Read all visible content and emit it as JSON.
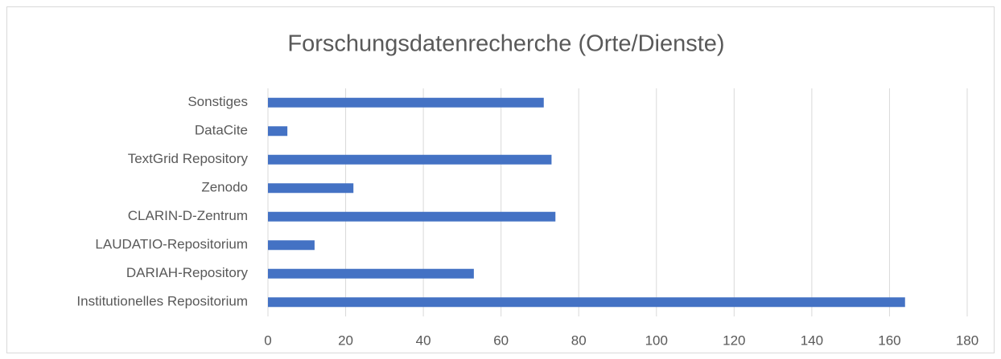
{
  "chart_data": {
    "type": "bar",
    "orientation": "horizontal",
    "title": "Forschungsdatenrecherche (Orte/Dienste)",
    "categories": [
      "Institutionelles Repositorium",
      "DARIAH-Repository",
      "LAUDATIO-Repositorium",
      "CLARIN-D-Zentrum",
      "Zenodo",
      "TextGrid Repository",
      "DataCite",
      "Sonstiges"
    ],
    "values": [
      164,
      53,
      12,
      74,
      22,
      73,
      5,
      71
    ],
    "color": "#4472c4",
    "xlim": [
      0,
      180
    ],
    "xticks": [
      0,
      20,
      40,
      60,
      80,
      100,
      120,
      140,
      160,
      180
    ],
    "grid": true
  }
}
